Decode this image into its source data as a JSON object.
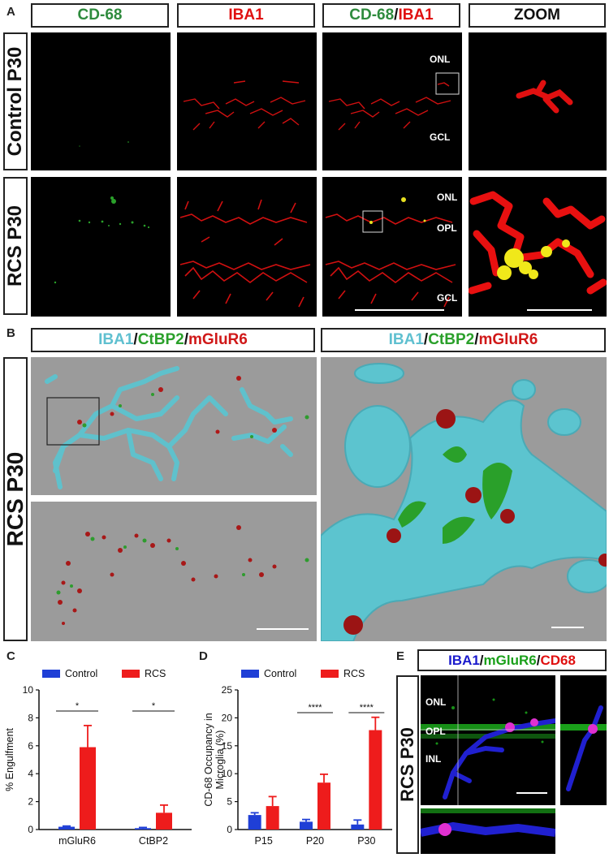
{
  "panel_letters": {
    "a": "A",
    "b": "B",
    "c": "C",
    "d": "D",
    "e": "E"
  },
  "panelA": {
    "headers": [
      "CD-68",
      "IBA1",
      "CD-68",
      "/",
      "IBA1",
      "ZOOM"
    ],
    "row_labels": [
      "Control P30",
      "RCS P30"
    ],
    "layer_labels": {
      "onl": "ONL",
      "gcl": "GCL",
      "opl": "OPL"
    },
    "colors": {
      "cd68": "#2e8b3d",
      "iba1": "#e01010"
    }
  },
  "panelB": {
    "title": {
      "p1": "IBA1",
      "s1": "/",
      "p2": "CtBP2",
      "s2": "/",
      "p3": "mGluR6"
    },
    "row_label": "RCS P30",
    "colors": {
      "iba1": "#5fc0d0",
      "ctbp2": "#2aa02a",
      "mglur6": "#d01818",
      "background": "#9b9b9b"
    }
  },
  "panelE": {
    "title": {
      "p1": "IBA1",
      "s1": "/",
      "p2": "mGluR6",
      "s2": "/",
      "p3": "CD68"
    },
    "row_label": "RCS P30",
    "layer_labels": {
      "onl": "ONL",
      "opl": "OPL",
      "inl": "INL"
    },
    "colors": {
      "iba1": "#1a1acc",
      "mglur6": "#1aa01a",
      "cd68": "#e01010"
    }
  },
  "chart_data": [
    {
      "type": "bar",
      "panel": "C",
      "ylabel": "% Engulfment",
      "categories": [
        "mGluR6",
        "CtBP2"
      ],
      "series": [
        {
          "name": "Control",
          "color": "#1f3fd6",
          "values": [
            0.2,
            0.1
          ],
          "errors": [
            0.05,
            0.05
          ]
        },
        {
          "name": "RCS",
          "color": "#ee1c1c",
          "values": [
            5.9,
            1.2
          ],
          "errors": [
            1.55,
            0.55
          ]
        }
      ],
      "ylim": [
        0,
        10
      ],
      "yticks": [
        0,
        2,
        4,
        6,
        8,
        10
      ],
      "significance": [
        "*",
        "*"
      ],
      "legend": "top"
    },
    {
      "type": "bar",
      "panel": "D",
      "ylabel": "CD-68 Occupancy in Microglia (%)",
      "ylabel_lines": [
        "CD-68 Occupancy in",
        "Microglia (%)"
      ],
      "categories": [
        "P15",
        "P20",
        "P30"
      ],
      "series": [
        {
          "name": "Control",
          "color": "#1f3fd6",
          "values": [
            2.6,
            1.4,
            0.9
          ],
          "errors": [
            0.4,
            0.4,
            0.8
          ]
        },
        {
          "name": "RCS",
          "color": "#ee1c1c",
          "values": [
            4.2,
            8.4,
            17.8
          ],
          "errors": [
            1.7,
            1.5,
            2.3
          ]
        }
      ],
      "ylim": [
        0,
        25
      ],
      "yticks": [
        0,
        5,
        10,
        15,
        20,
        25
      ],
      "significance": [
        "",
        "****",
        "****"
      ],
      "legend": "top"
    }
  ]
}
